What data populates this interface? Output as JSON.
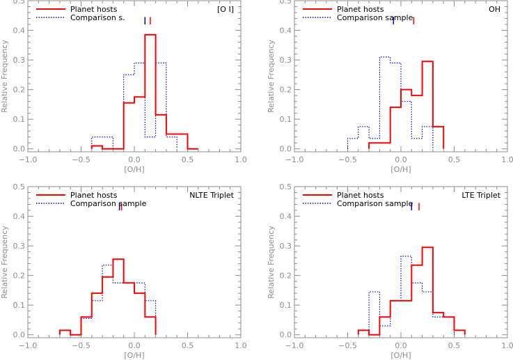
{
  "colors": {
    "planet": "#ff0000",
    "comparison": "#0000cc",
    "axis": "#8c8c8c",
    "text": "#000000"
  },
  "chart_data": [
    {
      "type": "histogram",
      "title": "[O I]",
      "xlabel": "[O/H]",
      "ylabel": "Relative Frequency",
      "xlim": [
        -1.0,
        1.0
      ],
      "ylim": [
        -0.01,
        0.5
      ],
      "bin_width": 0.1,
      "xticks": [
        "−1.0",
        "−0.5",
        "0.0",
        "0.5",
        "1.0"
      ],
      "xtick_values": [
        -1.0,
        -0.5,
        0.0,
        0.5,
        1.0
      ],
      "yticks": [
        "0.0",
        "0.1",
        "0.2",
        "0.3",
        "0.4",
        "0.5"
      ],
      "ytick_values": [
        0.0,
        0.1,
        0.2,
        0.3,
        0.4,
        0.5
      ],
      "legend_position": "top-left",
      "series": [
        {
          "name": "Planet hosts",
          "style": "solid",
          "color": "#ff0000",
          "marker_mean": 0.15,
          "edges": [
            -0.4,
            -0.3,
            -0.2,
            -0.1,
            0.0,
            0.1,
            0.2,
            0.3,
            0.4,
            0.5,
            0.6
          ],
          "values": [
            0.01,
            0.0,
            0.0,
            0.155,
            0.175,
            0.385,
            0.115,
            0.05,
            0.05,
            0.0
          ]
        },
        {
          "name": "Comparison s.",
          "style": "dotted",
          "color": "#0000cc",
          "marker_mean": 0.1,
          "edges": [
            -0.4,
            -0.3,
            -0.2,
            -0.1,
            0.0,
            0.1,
            0.2,
            0.3,
            0.4
          ],
          "values": [
            0.04,
            0.04,
            0.0,
            0.25,
            0.29,
            0.04,
            0.29,
            0.04
          ]
        }
      ]
    },
    {
      "type": "histogram",
      "title": "OH",
      "xlabel": "[O/H]",
      "ylabel": "Relative Frequency",
      "xlim": [
        -1.0,
        1.0
      ],
      "ylim": [
        -0.01,
        0.5
      ],
      "bin_width": 0.1,
      "xticks": [
        "−1.0",
        "−0.5",
        "0.0",
        "0.5",
        "1.0"
      ],
      "xtick_values": [
        -1.0,
        -0.5,
        0.0,
        0.5,
        1.0
      ],
      "yticks": [
        "0.0",
        "0.1",
        "0.2",
        "0.3",
        "0.4",
        "0.5"
      ],
      "ytick_values": [
        0.0,
        0.1,
        0.2,
        0.3,
        0.4,
        0.5
      ],
      "legend_position": "top-left",
      "series": [
        {
          "name": "Planet hosts",
          "style": "solid",
          "color": "#ff0000",
          "marker_mean": 0.12,
          "edges": [
            -0.3,
            -0.2,
            -0.1,
            0.0,
            0.1,
            0.2,
            0.3,
            0.4
          ],
          "values": [
            0.02,
            0.02,
            0.14,
            0.2,
            0.18,
            0.295,
            0.075
          ]
        },
        {
          "name": "Comparison sample",
          "style": "dotted",
          "color": "#0000cc",
          "marker_mean": -0.07,
          "edges": [
            -0.5,
            -0.4,
            -0.3,
            -0.2,
            -0.1,
            0.0,
            0.1,
            0.2,
            0.3
          ],
          "values": [
            0.035,
            0.075,
            0.035,
            0.31,
            0.29,
            0.16,
            0.035,
            0.075
          ]
        }
      ]
    },
    {
      "type": "histogram",
      "title": "NLTE Triplet",
      "xlabel": "[O/H]",
      "ylabel": "Relative Frequency",
      "xlim": [
        -1.0,
        1.0
      ],
      "ylim": [
        -0.01,
        0.5
      ],
      "bin_width": 0.1,
      "xticks": [
        "−1.0",
        "−0.5",
        "0.0",
        "0.5",
        "1.0"
      ],
      "xtick_values": [
        -1.0,
        -0.5,
        0.0,
        0.5,
        1.0
      ],
      "yticks": [
        "0.0",
        "0.1",
        "0.2",
        "0.3",
        "0.4",
        "0.5"
      ],
      "ytick_values": [
        0.0,
        0.1,
        0.2,
        0.3,
        0.4,
        0.5
      ],
      "legend_position": "top-left",
      "series": [
        {
          "name": "Planet hosts",
          "style": "solid",
          "color": "#ff0000",
          "marker_mean": -0.12,
          "edges": [
            -0.7,
            -0.6,
            -0.5,
            -0.4,
            -0.3,
            -0.2,
            -0.1,
            0.0,
            0.1,
            0.2
          ],
          "values": [
            0.015,
            0.0,
            0.06,
            0.14,
            0.195,
            0.255,
            0.175,
            0.14,
            0.06
          ]
        },
        {
          "name": "Comparison sample",
          "style": "dotted",
          "color": "#0000cc",
          "marker_mean": -0.14,
          "edges": [
            -0.6,
            -0.5,
            -0.4,
            -0.3,
            -0.2,
            -0.1,
            0.0,
            0.1,
            0.2
          ],
          "values": [
            0.0,
            0.055,
            0.115,
            0.235,
            0.175,
            0.175,
            0.175,
            0.115
          ]
        }
      ]
    },
    {
      "type": "histogram",
      "title": "LTE Triplet",
      "xlabel": "[O/H]",
      "ylabel": "Relative Frequency",
      "xlim": [
        -1.0,
        1.0
      ],
      "ylim": [
        -0.01,
        0.5
      ],
      "bin_width": 0.1,
      "xticks": [
        "−1.0",
        "−0.5",
        "0.0",
        "0.5",
        "1.0"
      ],
      "xtick_values": [
        -1.0,
        -0.5,
        0.0,
        0.5,
        1.0
      ],
      "yticks": [
        "0.0",
        "0.1",
        "0.2",
        "0.3",
        "0.4",
        "0.5"
      ],
      "ytick_values": [
        0.0,
        0.1,
        0.2,
        0.3,
        0.4,
        0.5
      ],
      "legend_position": "top-left",
      "series": [
        {
          "name": "Planet hosts",
          "style": "solid",
          "color": "#ff0000",
          "marker_mean": 0.17,
          "edges": [
            -0.4,
            -0.3,
            -0.2,
            -0.1,
            0.0,
            0.1,
            0.2,
            0.3,
            0.4,
            0.5,
            0.6
          ],
          "values": [
            0.015,
            0.0,
            0.06,
            0.115,
            0.115,
            0.235,
            0.295,
            0.075,
            0.06,
            0.015
          ]
        },
        {
          "name": "Comparison sample",
          "style": "dotted",
          "color": "#0000cc",
          "marker_mean": 0.1,
          "edges": [
            -0.3,
            -0.2,
            -0.1,
            0.0,
            0.1,
            0.2,
            0.3,
            0.4,
            0.5
          ],
          "values": [
            0.145,
            0.03,
            0.115,
            0.265,
            0.175,
            0.145,
            0.06,
            0.06
          ]
        }
      ]
    }
  ]
}
